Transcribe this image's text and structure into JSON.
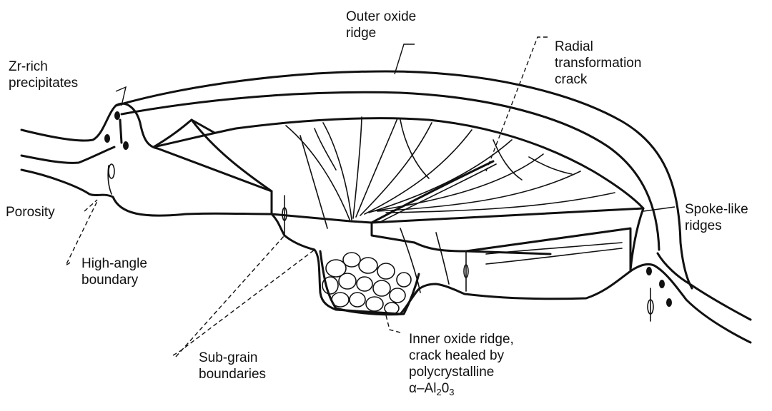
{
  "labels": {
    "outer_oxide_ridge": [
      "Outer oxide",
      "ridge"
    ],
    "radial_crack": [
      "Radial",
      "transformation",
      "crack"
    ],
    "zr_rich": [
      "Zr-rich",
      "precipitates"
    ],
    "porosity": "Porosity",
    "spoke_like": [
      "Spoke-like",
      "ridges"
    ],
    "high_angle": [
      "High-angle",
      "boundary"
    ],
    "inner_oxide": [
      "Inner oxide ridge,",
      "crack healed by",
      "polycrystalline"
    ],
    "alumina": {
      "alpha": "α",
      "dash": "–Al",
      "sub1": "2",
      "o": "0",
      "sub2": "3"
    },
    "sub_grain": [
      "Sub-grain",
      "boundaries"
    ]
  },
  "colors": {
    "ink": "#111111",
    "background": "#ffffff"
  }
}
